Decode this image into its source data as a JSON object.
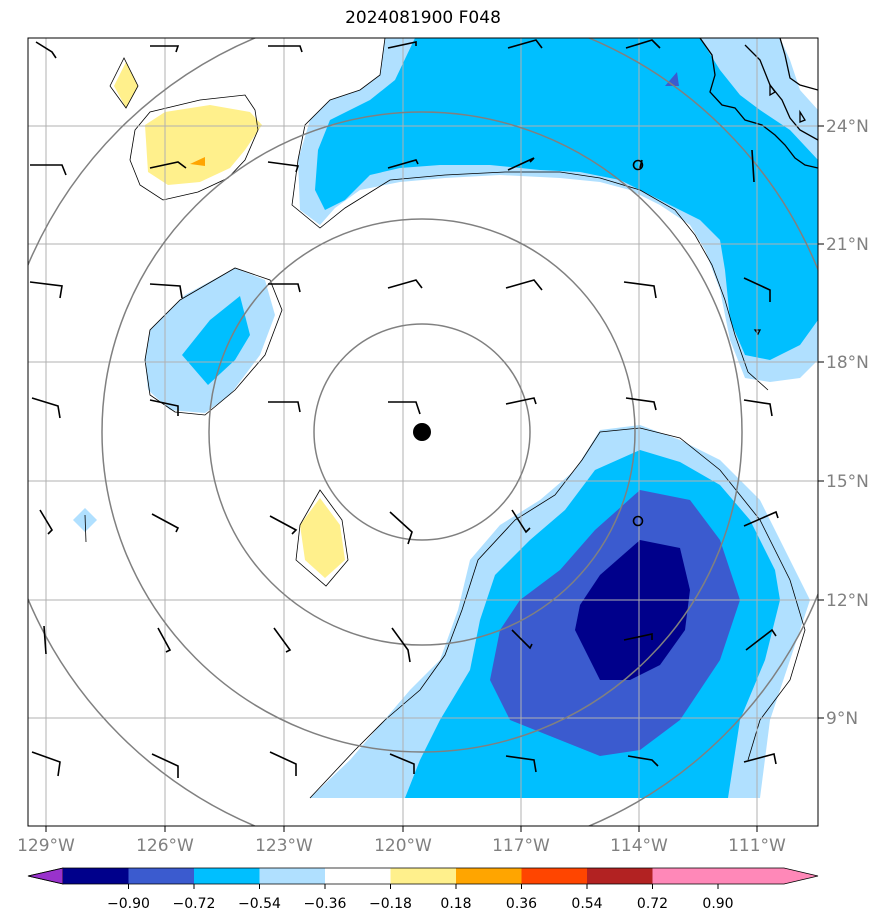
{
  "title": "2024081900 F048",
  "lon_labels": [
    "129°W",
    "126°W",
    "123°W",
    "120°W",
    "117°W",
    "114°W",
    "111°W"
  ],
  "lat_labels": [
    "24°N",
    "21°N",
    "18°N",
    "15°N",
    "12°N",
    "9°N"
  ],
  "colorbar": {
    "ticks": [
      "−0.90",
      "−0.72",
      "−0.54",
      "−0.36",
      "−0.18",
      "0.18",
      "0.36",
      "0.54",
      "0.72",
      "0.90"
    ],
    "colors": [
      "#9932cc",
      "#00008b",
      "#3b5bcf",
      "#00bfff",
      "#b0e0ff",
      "#ffffff",
      "#fff08c",
      "#ffa500",
      "#ff4500",
      "#b22222",
      "#ff88b8"
    ]
  },
  "contour_fill_colors": {
    "light_blue": "#b0e0ff",
    "deep_sky_blue": "#00bfff",
    "royal_blue": "#3b5bcf",
    "navy": "#00008b",
    "yellow": "#fff08c",
    "orange": "#ffa500"
  },
  "storm_center_marker": "filled-black-circle",
  "range_ring_color": "#808080",
  "gridline_color": "#b0b0b0"
}
